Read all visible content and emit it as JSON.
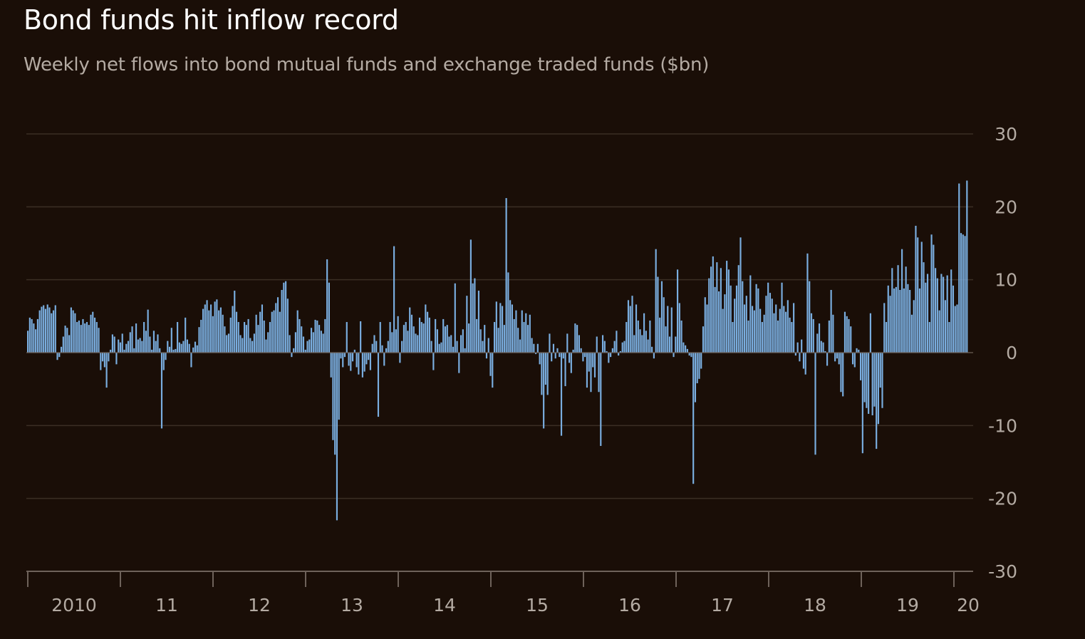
{
  "title": "Bond funds hit inflow record",
  "subtitle": "Weekly net flows into bond mutual funds and exchange traded funds ($bn)",
  "colors": {
    "background": "#1a0e07",
    "bar": "#7aaee0",
    "grid": "#3b2e24",
    "axis": "#6e625a",
    "text": "#b4aba3",
    "title": "#ffffff"
  },
  "chart_data": {
    "type": "bar",
    "title": "Bond funds hit inflow record",
    "subtitle": "Weekly net flows into bond mutual funds and exchange traded funds ($bn)",
    "ylabel": "",
    "xlabel": "",
    "ylim": [
      -30,
      30
    ],
    "yticks": [
      30,
      20,
      10,
      0,
      -10,
      -20,
      -30
    ],
    "y_axis_side": "right",
    "grid": true,
    "frequency": "weekly",
    "x_start": "2010-01",
    "x_end": "2020-02",
    "xtick_labels": [
      "2010",
      "11",
      "12",
      "13",
      "14",
      "15",
      "16",
      "17",
      "18",
      "19",
      "20"
    ],
    "year_boundaries": [
      "2010",
      "2011",
      "2012",
      "2013",
      "2014",
      "2015",
      "2016",
      "2017",
      "2018",
      "2019",
      "2020"
    ],
    "series": [
      {
        "values": [
          3.0,
          4.8,
          4.6,
          4.0,
          3.2,
          4.6,
          5.8,
          6.3,
          6.5,
          6.0,
          6.6,
          6.2,
          5.4,
          5.8,
          6.5,
          -1.0,
          -0.6,
          0.8,
          2.2,
          3.7,
          3.4,
          2.4,
          6.2,
          5.8,
          5.4,
          4.2,
          4.4,
          3.8,
          4.6,
          4.0,
          4.2,
          3.8,
          5.2,
          5.6,
          4.8,
          4.2,
          3.4,
          -2.4,
          -1.2,
          -2.0,
          -4.8,
          -1.2,
          0.4,
          2.5,
          2.2,
          -1.6,
          1.8,
          1.4,
          2.6,
          0.4,
          1.2,
          1.6,
          2.8,
          3.6,
          0.6,
          4.0,
          1.8,
          2.0,
          1.6,
          4.2,
          3.0,
          5.9,
          2.2,
          0.4,
          3.0,
          1.6,
          2.5,
          0.6,
          -10.4,
          -2.4,
          -1.0,
          1.6,
          0.8,
          3.4,
          0.4,
          0.5,
          4.2,
          1.4,
          1.2,
          1.6,
          4.8,
          1.8,
          1.2,
          -2.0,
          0.7,
          1.5,
          1.0,
          3.5,
          4.5,
          6.0,
          6.6,
          7.2,
          5.8,
          6.6,
          5.0,
          7.0,
          7.3,
          5.8,
          6.2,
          5.2,
          3.6,
          2.4,
          2.6,
          4.8,
          6.4,
          8.5,
          5.6,
          4.2,
          2.4,
          2.0,
          4.2,
          3.8,
          4.6,
          2.0,
          1.6,
          2.6,
          5.2,
          3.8,
          5.6,
          6.6,
          4.4,
          1.8,
          2.8,
          4.2,
          5.6,
          5.8,
          6.8,
          7.6,
          5.6,
          8.6,
          9.6,
          9.8,
          7.4,
          2.4,
          -0.6,
          0.6,
          2.8,
          5.8,
          4.6,
          3.6,
          2.2,
          0.4,
          1.6,
          1.8,
          3.4,
          2.8,
          4.5,
          4.4,
          3.8,
          3.0,
          2.6,
          4.6,
          12.8,
          9.6,
          -3.4,
          -12.0,
          -14.0,
          -23.0,
          -9.2,
          -0.8,
          -2.0,
          -0.6,
          4.2,
          -1.8,
          -2.5,
          -1.2,
          0.4,
          -2.0,
          -3.0,
          4.3,
          -3.4,
          -2.6,
          -1.6,
          -1.0,
          -2.4,
          1.2,
          2.4,
          1.6,
          -8.8,
          4.2,
          1.0,
          -1.8,
          0.6,
          1.6,
          4.2,
          2.8,
          14.6,
          3.2,
          5.0,
          -1.4,
          1.6,
          3.8,
          4.2,
          3.0,
          6.2,
          5.2,
          3.6,
          2.6,
          2.4,
          4.8,
          4.2,
          4.0,
          6.6,
          5.6,
          4.8,
          1.6,
          -2.4,
          4.6,
          3.2,
          1.2,
          1.4,
          4.6,
          3.6,
          3.8,
          2.2,
          2.4,
          0.8,
          9.5,
          1.6,
          -2.8,
          2.4,
          3.2,
          0.6,
          7.8,
          4.0,
          15.5,
          9.5,
          10.2,
          4.6,
          8.5,
          3.2,
          1.6,
          3.8,
          -0.8,
          2.0,
          -3.2,
          -4.8,
          4.2,
          7.0,
          3.4,
          6.8,
          6.4,
          3.8,
          21.2,
          11.0,
          7.2,
          6.6,
          4.6,
          5.8,
          3.4,
          1.8,
          5.8,
          4.2,
          5.4,
          3.8,
          5.2,
          2.0,
          1.2,
          -0.2,
          1.2,
          -1.6,
          -5.8,
          -10.4,
          -4.4,
          -5.8,
          2.6,
          -1.2,
          1.2,
          -0.8,
          0.6,
          -0.6,
          -11.4,
          -0.8,
          -4.6,
          2.6,
          -1.4,
          -2.8,
          0.4,
          4.0,
          3.8,
          2.4,
          0.6,
          -1.2,
          -0.6,
          -4.8,
          -2.6,
          -5.4,
          -2.0,
          -3.4,
          2.2,
          -5.4,
          -12.8,
          2.4,
          1.6,
          0.2,
          -1.4,
          -0.6,
          0.6,
          1.6,
          3.0,
          -0.4,
          0.2,
          1.4,
          1.6,
          4.2,
          7.2,
          6.4,
          7.8,
          2.4,
          6.6,
          4.4,
          3.2,
          2.4,
          5.4,
          3.0,
          1.8,
          4.4,
          0.8,
          -0.8,
          14.2,
          10.4,
          4.8,
          9.8,
          7.6,
          3.6,
          6.4,
          2.2,
          6.2,
          -0.6,
          2.2,
          11.4,
          6.8,
          4.4,
          1.4,
          1.0,
          0.5,
          -0.4,
          -0.6,
          -18.0,
          -6.8,
          -4.2,
          -3.6,
          -2.2,
          3.6,
          7.6,
          6.6,
          10.2,
          11.8,
          13.2,
          9.0,
          12.4,
          8.4,
          11.6,
          6.0,
          8.0,
          12.6,
          11.4,
          9.2,
          4.2,
          7.4,
          9.2,
          12.0,
          15.8,
          9.8,
          6.6,
          7.8,
          4.4,
          10.6,
          6.4,
          5.8,
          9.4,
          8.8,
          6.0,
          4.2,
          5.2,
          7.8,
          9.6,
          8.2,
          7.4,
          5.4,
          6.6,
          4.4,
          6.0,
          9.6,
          6.4,
          5.6,
          7.2,
          4.8,
          4.2,
          6.8,
          -0.4,
          1.4,
          -1.2,
          1.8,
          -2.2,
          -3.0,
          13.6,
          9.8,
          5.4,
          4.6,
          -14.0,
          2.6,
          4.0,
          1.6,
          1.4,
          0.2,
          -1.8,
          4.4,
          8.6,
          5.2,
          -1.2,
          -0.8,
          -1.6,
          -5.4,
          -6.0,
          5.6,
          5.0,
          4.6,
          3.6,
          -1.6,
          -2.0,
          0.6,
          0.4,
          -3.8,
          -13.8,
          -6.8,
          -7.6,
          -8.4,
          5.4,
          -8.6,
          -7.4,
          -13.2,
          -9.8,
          -4.8,
          -7.6,
          6.8,
          4.2,
          9.2,
          7.8,
          11.6,
          8.8,
          9.0,
          12.0,
          8.6,
          14.2,
          8.8,
          11.8,
          9.4,
          8.6,
          5.2,
          7.2,
          17.4,
          15.8,
          8.8,
          15.2,
          12.4,
          9.6,
          10.8,
          4.2,
          16.2,
          14.8,
          11.6,
          10.2,
          5.8,
          10.8,
          10.4,
          7.2,
          10.6,
          4.2,
          11.4,
          9.2,
          6.4,
          6.6,
          23.2,
          16.4,
          16.2,
          16.0,
          23.6
        ]
      }
    ]
  }
}
